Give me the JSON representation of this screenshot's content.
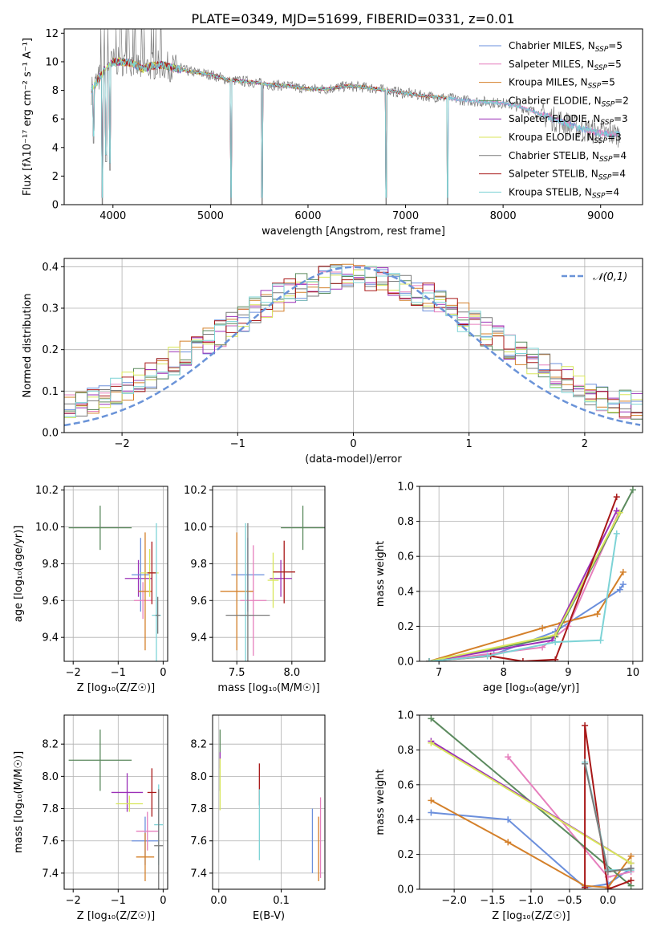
{
  "figure_title": "PLATE=0349, MJD=51699, FIBERID=0331, z=0.01",
  "colors": {
    "chabrier_miles": "#6b8fdc",
    "salpeter_miles": "#e67fbd",
    "kroupa_miles": "#d4802a",
    "chabrier_elodie": "#5b8a5e",
    "salpeter_elodie": "#9b30b8",
    "kroupa_elodie": "#d8e65a",
    "chabrier_stelib": "#7a7a7a",
    "salpeter_stelib": "#a81818",
    "kroupa_stelib": "#7dd3d6",
    "normal_curve": "#6a93d8",
    "grid": "#b0b0b0"
  },
  "chart_data": [
    {
      "id": "spectrum",
      "type": "line",
      "title": "",
      "xlabel": "wavelength [Angstrom, rest frame]",
      "ylabel": "Flux [fλ10⁻¹⁷ erg cm⁻² s⁻¹ A⁻¹]",
      "xlim": [
        3500,
        9430
      ],
      "ylim": [
        0,
        12.3
      ],
      "xticks": [
        4000,
        5000,
        6000,
        7000,
        8000,
        9000
      ],
      "yticks": [
        0,
        2,
        4,
        6,
        8,
        10,
        12
      ],
      "grid": false,
      "legend_placement": "upper-right",
      "legend": [
        {
          "label": "Chabrier MILES, N_SSP=5",
          "color_key": "chabrier_miles"
        },
        {
          "label": "Salpeter MILES, N_SSP=5",
          "color_key": "salpeter_miles"
        },
        {
          "label": "Kroupa MILES, N_SSP=5",
          "color_key": "kroupa_miles"
        },
        {
          "label": "Chabrier ELODIE, N_SSP=2",
          "color_key": "chabrier_elodie"
        },
        {
          "label": "Salpeter ELODIE, N_SSP=3",
          "color_key": "salpeter_elodie"
        },
        {
          "label": "Kroupa ELODIE, N_SSP=3",
          "color_key": "kroupa_elodie"
        },
        {
          "label": "Chabrier STELIB, N_SSP=4",
          "color_key": "chabrier_stelib"
        },
        {
          "label": "Salpeter STELIB, N_SSP=4",
          "color_key": "salpeter_stelib"
        },
        {
          "label": "Kroupa STELIB, N_SSP=4",
          "color_key": "kroupa_stelib"
        }
      ],
      "continuum": {
        "x": [
          3780,
          3900,
          4000,
          4100,
          4200,
          4300,
          4400,
          4500,
          4600,
          4800,
          5000,
          5200,
          5400,
          5600,
          5800,
          6000,
          6200,
          6400,
          6600,
          6800,
          7000,
          7200,
          7400,
          7600,
          7800,
          8000,
          8200,
          8400,
          8600,
          8800,
          9000,
          9200
        ],
        "y": [
          8.0,
          9.3,
          10.0,
          10.0,
          9.9,
          9.5,
          9.7,
          9.8,
          9.6,
          9.3,
          9.1,
          8.7,
          8.6,
          8.4,
          8.3,
          8.1,
          8.1,
          8.3,
          8.2,
          8.0,
          7.8,
          7.6,
          7.5,
          7.3,
          7.2,
          7.1,
          6.8,
          6.3,
          5.8,
          5.3,
          5.0,
          4.9
        ]
      },
      "dips": [
        {
          "x": 3800,
          "y": 4.3
        },
        {
          "x": 3890,
          "y": 0.0
        },
        {
          "x": 3930,
          "y": 3.0
        },
        {
          "x": 3970,
          "y": 2.4
        },
        {
          "x": 5210,
          "y": 0.0
        },
        {
          "x": 5530,
          "y": 0.0
        },
        {
          "x": 6800,
          "y": 0.0
        },
        {
          "x": 7430,
          "y": 0.0
        }
      ]
    },
    {
      "id": "residuals",
      "type": "histogram",
      "title": "",
      "xlabel": "(data-model)/error",
      "ylabel": "Normed distribution",
      "xlim": [
        -2.5,
        2.5
      ],
      "ylim": [
        0,
        0.42
      ],
      "xticks": [
        -2,
        -1,
        0,
        1,
        2
      ],
      "yticks": [
        0.0,
        0.1,
        0.2,
        0.3,
        0.4
      ],
      "grid": true,
      "legend_placement": "upper-right",
      "legend": [
        {
          "label": "𝒩(0,1)",
          "color_key": "normal_curve",
          "style": "dashed"
        }
      ],
      "bin_width": 0.1,
      "n_models": 9
    },
    {
      "id": "age_vs_z",
      "type": "errorbar",
      "xlabel": "Z [log₁₀(Z/Z☉)]",
      "ylabel": "age  [log₁₀(age/yr)]",
      "xlim": [
        -2.2,
        0.1
      ],
      "ylim": [
        9.27,
        10.22
      ],
      "xticks": [
        -2,
        -1,
        0
      ],
      "yticks": [
        9.4,
        9.6,
        9.8,
        10.0,
        10.2
      ],
      "grid": true,
      "points": [
        {
          "color_key": "chabrier_elodie",
          "x": -1.4,
          "xerr": 0.7,
          "y": 9.995,
          "yerr": 0.12
        },
        {
          "color_key": "salpeter_elodie",
          "x": -0.55,
          "xerr": 0.3,
          "y": 9.72,
          "yerr": 0.1
        },
        {
          "color_key": "chabrier_miles",
          "x": -0.5,
          "xerr": 0.2,
          "y": 9.74,
          "yerr": 0.2
        },
        {
          "color_key": "salpeter_miles",
          "x": -0.45,
          "xerr": 0.2,
          "y": 9.6,
          "yerr": 0.1
        },
        {
          "color_key": "kroupa_miles",
          "x": -0.4,
          "xerr": 0.15,
          "y": 9.65,
          "yerr": 0.32
        },
        {
          "color_key": "kroupa_elodie",
          "x": -0.3,
          "xerr": 0.2,
          "y": 9.75,
          "yerr": 0.13
        },
        {
          "color_key": "salpeter_stelib",
          "x": -0.25,
          "xerr": 0.1,
          "y": 9.75,
          "yerr": 0.17
        },
        {
          "color_key": "kroupa_stelib",
          "x": -0.15,
          "xerr": 0.1,
          "y": 9.52,
          "yerr": 0.5
        },
        {
          "color_key": "chabrier_stelib",
          "x": -0.12,
          "xerr": 0.05,
          "y": 9.52,
          "yerr": 0.1
        }
      ]
    },
    {
      "id": "age_vs_mass",
      "type": "errorbar",
      "xlabel": "mass [log₁₀(M/M☉)]",
      "ylabel": "",
      "xlim": [
        7.28,
        8.3
      ],
      "ylim": [
        9.27,
        10.22
      ],
      "xticks": [
        7.5,
        8.0
      ],
      "yticks": [
        9.4,
        9.6,
        9.8,
        10.0,
        10.2
      ],
      "grid": true,
      "points": [
        {
          "color_key": "chabrier_elodie",
          "x": 8.1,
          "xerr": 0.2,
          "y": 9.995,
          "yerr": 0.12
        },
        {
          "color_key": "salpeter_elodie",
          "x": 7.9,
          "xerr": 0.1,
          "y": 9.72,
          "yerr": 0.1
        },
        {
          "color_key": "chabrier_miles",
          "x": 7.6,
          "xerr": 0.15,
          "y": 9.74,
          "yerr": 0.2
        },
        {
          "color_key": "salpeter_miles",
          "x": 7.65,
          "xerr": 0.12,
          "y": 9.6,
          "yerr": 0.3
        },
        {
          "color_key": "kroupa_miles",
          "x": 7.5,
          "xerr": 0.15,
          "y": 9.65,
          "yerr": 0.32
        },
        {
          "color_key": "kroupa_elodie",
          "x": 7.83,
          "xerr": 0.05,
          "y": 9.71,
          "yerr": 0.15
        },
        {
          "color_key": "salpeter_stelib",
          "x": 7.93,
          "xerr": 0.1,
          "y": 9.755,
          "yerr": 0.17
        },
        {
          "color_key": "kroupa_stelib",
          "x": 7.58,
          "xerr": 0.05,
          "y": 9.52,
          "yerr": 0.5
        },
        {
          "color_key": "chabrier_stelib",
          "x": 7.6,
          "xerr": 0.2,
          "y": 9.52,
          "yerr": 0.5
        }
      ]
    },
    {
      "id": "weight_vs_age",
      "type": "line",
      "xlabel": "age  [log₁₀(age/yr)]",
      "ylabel": "mass weight",
      "xlim": [
        6.7,
        10.15
      ],
      "ylim": [
        0,
        1.0
      ],
      "xticks": [
        7,
        8,
        9,
        10
      ],
      "yticks": [
        0.0,
        0.2,
        0.4,
        0.6,
        0.8,
        1.0
      ],
      "grid": true,
      "series": [
        {
          "color_key": "chabrier_miles",
          "x": [
            6.85,
            7.85,
            8.8,
            9.8,
            9.85
          ],
          "y": [
            0.0,
            0.04,
            0.17,
            0.41,
            0.44
          ]
        },
        {
          "color_key": "salpeter_miles",
          "x": [
            6.85,
            8.6,
            9.0,
            9.78
          ],
          "y": [
            0.0,
            0.08,
            0.2,
            0.85
          ]
        },
        {
          "color_key": "kroupa_miles",
          "x": [
            6.85,
            8.6,
            8.9,
            9.45,
            9.85
          ],
          "y": [
            0.0,
            0.19,
            0.22,
            0.27,
            0.51
          ]
        },
        {
          "color_key": "chabrier_elodie",
          "x": [
            6.85,
            8.8,
            10.0
          ],
          "y": [
            0.0,
            0.14,
            0.98
          ]
        },
        {
          "color_key": "salpeter_elodie",
          "x": [
            6.85,
            8.75,
            9.75
          ],
          "y": [
            0.0,
            0.12,
            0.86
          ]
        },
        {
          "color_key": "kroupa_elodie",
          "x": [
            6.85,
            8.8,
            9.8
          ],
          "y": [
            0.0,
            0.15,
            0.85
          ]
        },
        {
          "color_key": "salpeter_stelib",
          "x": [
            6.85,
            7.8,
            8.3,
            8.8,
            9.75
          ],
          "y": [
            0.0,
            0.03,
            0.0,
            0.01,
            0.94
          ]
        },
        {
          "color_key": "kroupa_stelib",
          "x": [
            6.85,
            7.75,
            8.8,
            9.5,
            9.75
          ],
          "y": [
            0.0,
            0.03,
            0.11,
            0.12,
            0.73
          ]
        }
      ]
    },
    {
      "id": "mass_vs_z",
      "type": "errorbar",
      "xlabel": "Z [log₁₀(Z/Z☉)]",
      "ylabel": "mass [log₁₀(M/M☉)]",
      "xlim": [
        -2.2,
        0.1
      ],
      "ylim": [
        7.3,
        8.38
      ],
      "xticks": [
        -2,
        -1,
        0
      ],
      "yticks": [
        7.4,
        7.6,
        7.8,
        8.0,
        8.2
      ],
      "grid": true,
      "points": [
        {
          "color_key": "chabrier_elodie",
          "x": -1.4,
          "xerr": 0.7,
          "y": 8.1,
          "yerr": 0.19
        },
        {
          "color_key": "salpeter_elodie",
          "x": -0.8,
          "xerr": 0.35,
          "y": 7.9,
          "yerr": 0.12
        },
        {
          "color_key": "kroupa_elodie",
          "x": -0.75,
          "xerr": 0.3,
          "y": 7.83,
          "yerr": 0.05
        },
        {
          "color_key": "chabrier_miles",
          "x": -0.4,
          "xerr": 0.3,
          "y": 7.6,
          "yerr": 0.15
        },
        {
          "color_key": "salpeter_miles",
          "x": -0.35,
          "xerr": 0.25,
          "y": 7.66,
          "yerr": 0.12
        },
        {
          "color_key": "kroupa_miles",
          "x": -0.4,
          "xerr": 0.2,
          "y": 7.5,
          "yerr": 0.15
        },
        {
          "color_key": "salpeter_stelib",
          "x": -0.25,
          "xerr": 0.1,
          "y": 7.9,
          "yerr": 0.15
        },
        {
          "color_key": "kroupa_stelib",
          "x": -0.1,
          "xerr": 0.1,
          "y": 7.7,
          "yerr": 0.25
        },
        {
          "color_key": "chabrier_stelib",
          "x": -0.1,
          "xerr": 0.1,
          "y": 7.57,
          "yerr": 0.35
        }
      ]
    },
    {
      "id": "mass_vs_ebv",
      "type": "errorbar",
      "xlabel": "E(B-V)",
      "ylabel": "",
      "xlim": [
        -0.01,
        0.17
      ],
      "ylim": [
        7.3,
        8.38
      ],
      "xticks": [
        0.0,
        0.1
      ],
      "yticks": [
        7.4,
        7.6,
        7.8,
        8.0,
        8.2
      ],
      "grid": true,
      "points": [
        {
          "color_key": "chabrier_elodie",
          "x": 0.002,
          "xerr": 0,
          "y": 8.1,
          "yerr": 0.19
        },
        {
          "color_key": "salpeter_elodie",
          "x": 0.002,
          "xerr": 0,
          "y": 8.1,
          "yerr": 0.05
        },
        {
          "color_key": "kroupa_elodie",
          "x": 0.002,
          "xerr": 0,
          "y": 7.95,
          "yerr": 0.16
        },
        {
          "color_key": "salpeter_stelib",
          "x": 0.065,
          "xerr": 0,
          "y": 7.95,
          "yerr": 0.13
        },
        {
          "color_key": "kroupa_stelib",
          "x": 0.065,
          "xerr": 0,
          "y": 7.7,
          "yerr": 0.22
        },
        {
          "color_key": "chabrier_miles",
          "x": 0.15,
          "xerr": 0,
          "y": 7.6,
          "yerr": 0.2
        },
        {
          "color_key": "kroupa_miles",
          "x": 0.16,
          "xerr": 0,
          "y": 7.55,
          "yerr": 0.2
        },
        {
          "color_key": "salpeter_miles",
          "x": 0.163,
          "xerr": 0,
          "y": 7.62,
          "yerr": 0.25
        }
      ]
    },
    {
      "id": "weight_vs_z",
      "type": "line",
      "xlabel": "Z [log₁₀(Z/Z☉)]",
      "ylabel": "mass weight",
      "xlim": [
        -2.45,
        0.45
      ],
      "ylim": [
        0,
        1.0
      ],
      "xticks": [
        -2.0,
        -1.5,
        -1.0,
        -0.5,
        0.0
      ],
      "yticks": [
        0.0,
        0.2,
        0.4,
        0.6,
        0.8,
        1.0
      ],
      "grid": true,
      "series": [
        {
          "color_key": "chabrier_miles",
          "x": [
            -2.3,
            -1.3,
            -0.3,
            0.0,
            0.3
          ],
          "y": [
            0.44,
            0.4,
            0.01,
            0.03,
            0.12
          ]
        },
        {
          "color_key": "salpeter_miles",
          "x": [
            -1.3,
            0.0,
            0.3
          ],
          "y": [
            0.76,
            0.07,
            0.1
          ]
        },
        {
          "color_key": "kroupa_miles",
          "x": [
            -2.3,
            -1.3,
            -0.3,
            0.0,
            0.3
          ],
          "y": [
            0.51,
            0.27,
            0.02,
            0.01,
            0.19
          ]
        },
        {
          "color_key": "chabrier_elodie",
          "x": [
            -2.3,
            0.3
          ],
          "y": [
            0.98,
            0.02
          ]
        },
        {
          "color_key": "salpeter_elodie",
          "x": [
            -2.3,
            0.3
          ],
          "y": [
            0.85,
            0.15
          ]
        },
        {
          "color_key": "kroupa_elodie",
          "x": [
            -2.3,
            0.3
          ],
          "y": [
            0.84,
            0.15
          ]
        },
        {
          "color_key": "salpeter_stelib",
          "x": [
            -0.3,
            -0.3,
            0.0,
            0.3
          ],
          "y": [
            0.01,
            0.94,
            0.0,
            0.05
          ]
        },
        {
          "color_key": "kroupa_stelib",
          "x": [
            -0.3,
            0.0,
            0.3
          ],
          "y": [
            0.73,
            0.11,
            0.11
          ]
        },
        {
          "color_key": "chabrier_stelib",
          "x": [
            -0.3,
            0.0,
            0.3
          ],
          "y": [
            0.72,
            0.1,
            0.12
          ]
        }
      ]
    }
  ]
}
